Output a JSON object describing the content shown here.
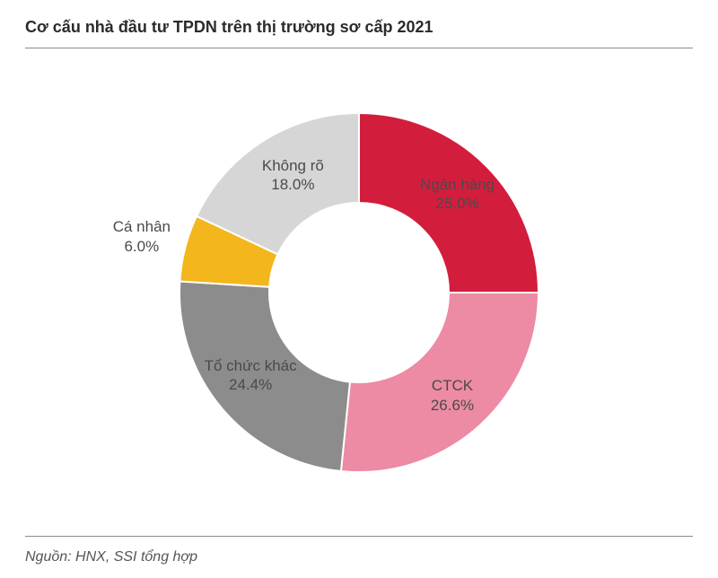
{
  "chart": {
    "type": "donut",
    "title": "Cơ cấu nhà đầu tư TPDN trên thị trường sơ cấp 2021",
    "source": "Nguồn: HNX, SSI tổng hợp",
    "background_color": "#ffffff",
    "title_fontsize": 18,
    "title_color": "#2b2b2b",
    "label_fontsize": 17,
    "label_color": "#4a4a4a",
    "source_fontsize": 16,
    "source_color": "#555555",
    "rule_color": "#8a8a8a",
    "outer_radius": 200,
    "inner_radius": 100,
    "stroke_color": "#ffffff",
    "stroke_width": 2,
    "start_angle_deg": 0,
    "slices": [
      {
        "name": "Ngân hàng",
        "value": 25.0,
        "color": "#d31d3c",
        "percent_text": "25.0%",
        "label_r": 155,
        "label_angle_offset": 0
      },
      {
        "name": "CTCK",
        "value": 26.6,
        "color": "#ec8ba3",
        "percent_text": "26.6%",
        "label_r": 155,
        "label_angle_offset": 0
      },
      {
        "name": "Tổ chức khác",
        "value": 24.4,
        "color": "#8c8c8c",
        "percent_text": "24.4%",
        "label_r": 152,
        "label_angle_offset": 3
      },
      {
        "name": "Cá nhân",
        "value": 6.0,
        "color": "#f3b61c",
        "percent_text": "6.0%",
        "label_r": 250,
        "label_angle_offset": 0
      },
      {
        "name": "Không rõ",
        "value": 18.0,
        "color": "#d6d6d6",
        "percent_text": "18.0%",
        "label_r": 150,
        "label_angle_offset": 3
      }
    ]
  }
}
